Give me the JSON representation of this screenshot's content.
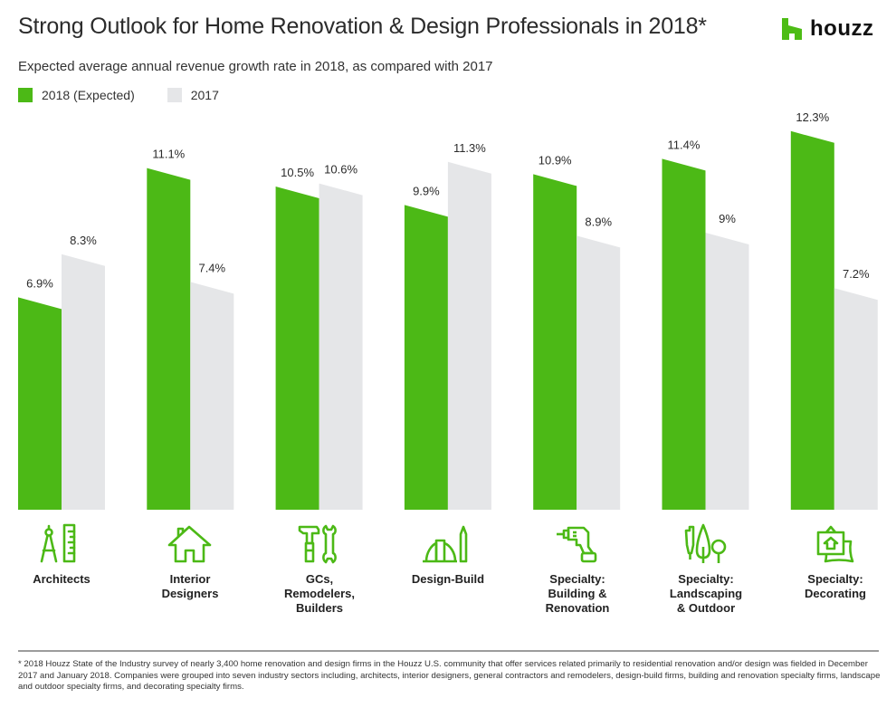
{
  "header": {
    "title": "Strong Outlook for Home Renovation & Design Professionals in 2018*",
    "subtitle": "Expected average annual revenue growth rate in 2018, as compared with 2017",
    "logo_text": "houzz"
  },
  "colors": {
    "green": "#4CB916",
    "grey": "#E5E6E8",
    "brand": "#4DBC15"
  },
  "chart_data": {
    "type": "bar",
    "title": "Strong Outlook for Home Renovation & Design Professionals in 2018*",
    "subtitle": "Expected average annual revenue growth rate in 2018, as compared with 2017",
    "xlabel": "",
    "ylabel": "",
    "ylim": [
      0,
      12.5
    ],
    "grid": false,
    "legend_position": "top-left",
    "categories": [
      "Architects",
      "Interior Designers",
      "GCs, Remodelers, Builders",
      "Design-Build",
      "Specialty: Building & Renovation",
      "Specialty: Landscaping & Outdoor",
      "Specialty: Decorating"
    ],
    "series": [
      {
        "name": "2018 (Expected)",
        "color": "#4CB916",
        "values": [
          6.9,
          11.1,
          10.5,
          9.9,
          10.9,
          11.4,
          12.3
        ],
        "labels": [
          "6.9%",
          "11.1%",
          "10.5%",
          "9.9%",
          "10.9%",
          "11.4%",
          "12.3%"
        ]
      },
      {
        "name": "2017",
        "color": "#E5E6E8",
        "values": [
          8.3,
          7.4,
          10.6,
          11.3,
          8.9,
          9.0,
          7.2
        ],
        "labels": [
          "8.3%",
          "7.4%",
          "10.6%",
          "11.3%",
          "8.9%",
          "9%",
          "7.2%"
        ]
      }
    ]
  },
  "legend": [
    {
      "label": "2018 (Expected)",
      "color": "#4CB916"
    },
    {
      "label": "2017",
      "color": "#E5E6E8"
    }
  ],
  "categories": [
    {
      "icon": "architect-compass-ruler-icon",
      "lines": [
        "Architects"
      ]
    },
    {
      "icon": "house-icon",
      "lines": [
        "Interior",
        "Designers"
      ]
    },
    {
      "icon": "hammer-wrench-icon",
      "lines": [
        "GCs,",
        "Remodelers,",
        "Builders"
      ]
    },
    {
      "icon": "hardhat-pencil-icon",
      "lines": [
        "Design-Build"
      ]
    },
    {
      "icon": "drill-icon",
      "lines": [
        "Specialty:",
        "Building &",
        "Renovation"
      ]
    },
    {
      "icon": "pen-trees-icon",
      "lines": [
        "Specialty:",
        "Landscaping",
        "& Outdoor"
      ]
    },
    {
      "icon": "picture-pillow-icon",
      "lines": [
        "Specialty:",
        "Decorating"
      ]
    }
  ],
  "footnote": "* 2018 Houzz State of the Industry survey of nearly 3,400 home renovation and design firms in the Houzz U.S. community that offer services related primarily to residential renovation and/or design was fielded in December 2017 and January 2018. Companies were grouped into seven industry sectors including, architects, interior designers, general contractors and remodelers, design-build firms, building and renovation specialty firms, landscape and outdoor specialty firms, and decorating specialty firms."
}
